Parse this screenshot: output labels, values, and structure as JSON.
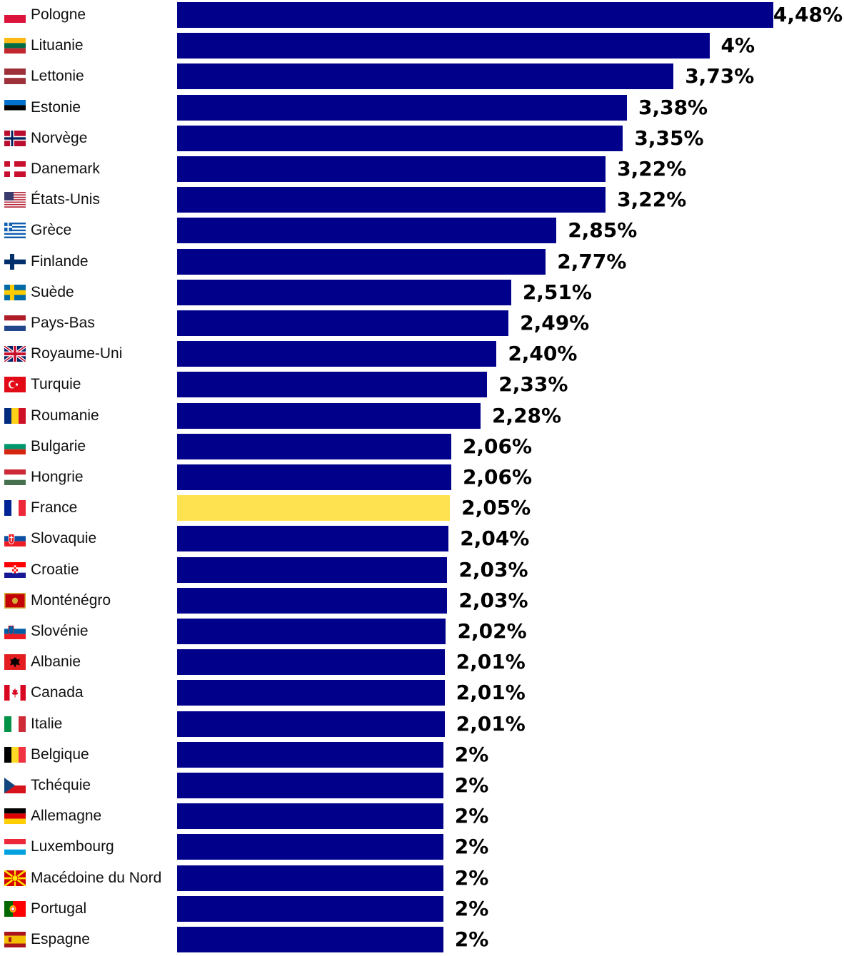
{
  "chart_data": {
    "type": "bar",
    "orientation": "horizontal",
    "title": "",
    "xlabel": "",
    "ylabel": "",
    "unit": "%",
    "xlim": [
      0,
      4.48
    ],
    "colors": {
      "default": "#00008b",
      "highlight": "#ffe24f"
    },
    "highlight": "France",
    "categories": [
      "Pologne",
      "Lituanie",
      "Lettonie",
      "Estonie",
      "Norvège",
      "Danemark",
      "États-Unis",
      "Grèce",
      "Finlande",
      "Suède",
      "Pays-Bas",
      "Royaume-Uni",
      "Turquie",
      "Roumanie",
      "Bulgarie",
      "Hongrie",
      "France",
      "Slovaquie",
      "Croatie",
      "Monténégro",
      "Slovénie",
      "Albanie",
      "Canada",
      "Italie",
      "Belgique",
      "Tchéquie",
      "Allemagne",
      "Luxembourg",
      "Macédoine du Nord",
      "Portugal",
      "Espagne"
    ],
    "values": [
      4.48,
      4.0,
      3.73,
      3.38,
      3.35,
      3.22,
      3.22,
      2.85,
      2.77,
      2.51,
      2.49,
      2.4,
      2.33,
      2.28,
      2.06,
      2.06,
      2.05,
      2.04,
      2.03,
      2.03,
      2.02,
      2.01,
      2.01,
      2.01,
      2.0,
      2.0,
      2.0,
      2.0,
      2.0,
      2.0,
      2.0
    ],
    "value_labels": [
      "4,48%",
      "4%",
      "3,73%",
      "3,38%",
      "3,35%",
      "3,22%",
      "3,22%",
      "2,85%",
      "2,77%",
      "2,51%",
      "2,49%",
      "2,40%",
      "2,33%",
      "2,28%",
      "2,06%",
      "2,06%",
      "2,05%",
      "2,04%",
      "2,03%",
      "2,03%",
      "2,02%",
      "2,01%",
      "2,01%",
      "2,01%",
      "2%",
      "2%",
      "2%",
      "2%",
      "2%",
      "2%",
      "2%"
    ],
    "flags": [
      "poland-flag-icon",
      "lithuania-flag-icon",
      "latvia-flag-icon",
      "estonia-flag-icon",
      "norway-flag-icon",
      "denmark-flag-icon",
      "usa-flag-icon",
      "greece-flag-icon",
      "finland-flag-icon",
      "sweden-flag-icon",
      "netherlands-flag-icon",
      "uk-flag-icon",
      "turkey-flag-icon",
      "romania-flag-icon",
      "bulgaria-flag-icon",
      "hungary-flag-icon",
      "france-flag-icon",
      "slovakia-flag-icon",
      "croatia-flag-icon",
      "montenegro-flag-icon",
      "slovenia-flag-icon",
      "albania-flag-icon",
      "canada-flag-icon",
      "italy-flag-icon",
      "belgium-flag-icon",
      "czechia-flag-icon",
      "germany-flag-icon",
      "luxembourg-flag-icon",
      "north-macedonia-flag-icon",
      "portugal-flag-icon",
      "spain-flag-icon"
    ]
  }
}
